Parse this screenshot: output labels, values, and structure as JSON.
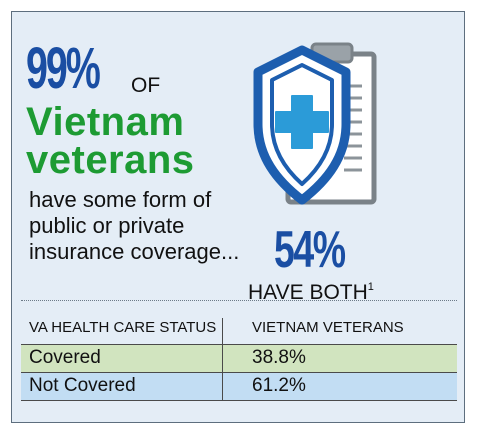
{
  "headline": {
    "percent": "99%",
    "of": "OF",
    "subject_line1": "Vietnam",
    "subject_line2": "veterans",
    "body_line1": "have some form of",
    "body_line2": "public or private",
    "body_line3": "insurance coverage..."
  },
  "both": {
    "percent": "54%",
    "label": "HAVE BOTH",
    "footnote": "1"
  },
  "icons": {
    "clipboard": "clipboard-icon",
    "shield": "shield-icon",
    "cross": "medical-cross-icon"
  },
  "table": {
    "headers": [
      "VA HEALTH CARE STATUS",
      "VIETNAM VETERANS"
    ],
    "rows": [
      {
        "status": "Covered",
        "value": "38.8%",
        "color": "#d1e4bf"
      },
      {
        "status": "Not Covered",
        "value": "61.2%",
        "color": "#c2ddf3"
      }
    ]
  },
  "colors": {
    "background": "#e4edf6",
    "headline_blue": "#1a4ea3",
    "veterans_green": "#1d9b33",
    "shield_blue": "#1d5eaf",
    "cross_blue": "#2b9bd8"
  }
}
